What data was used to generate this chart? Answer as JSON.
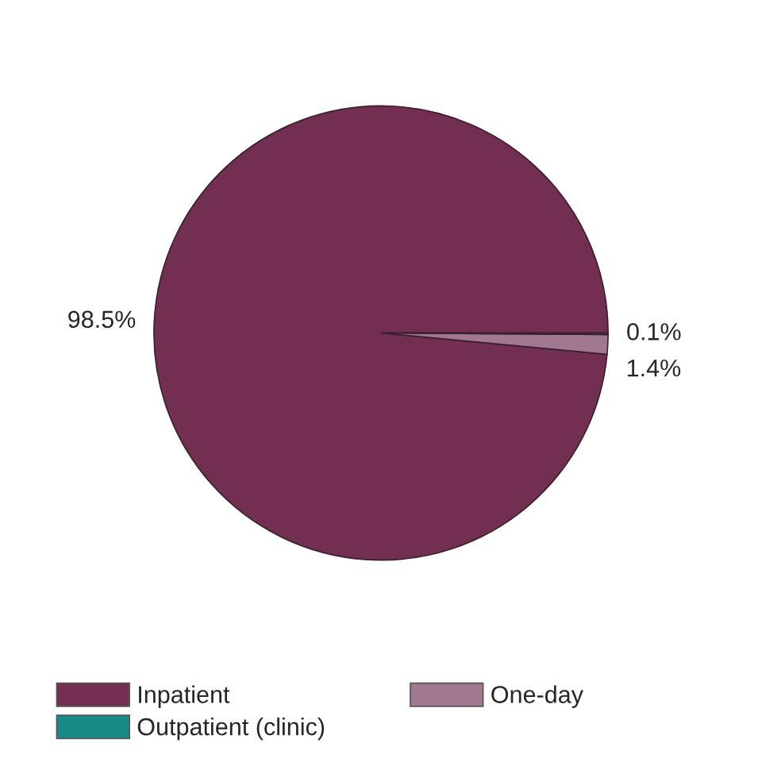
{
  "chart_data": {
    "type": "pie",
    "categories": [
      "Inpatient",
      "One-day",
      "Outpatient (clinic)"
    ],
    "values": [
      98.5,
      1.4,
      0.1
    ],
    "colors": [
      "#722f51",
      "#a07890",
      "#1a8a86"
    ],
    "value_labels": [
      "98.5%",
      "1.4%",
      "0.1%"
    ],
    "legend": "bottom"
  }
}
